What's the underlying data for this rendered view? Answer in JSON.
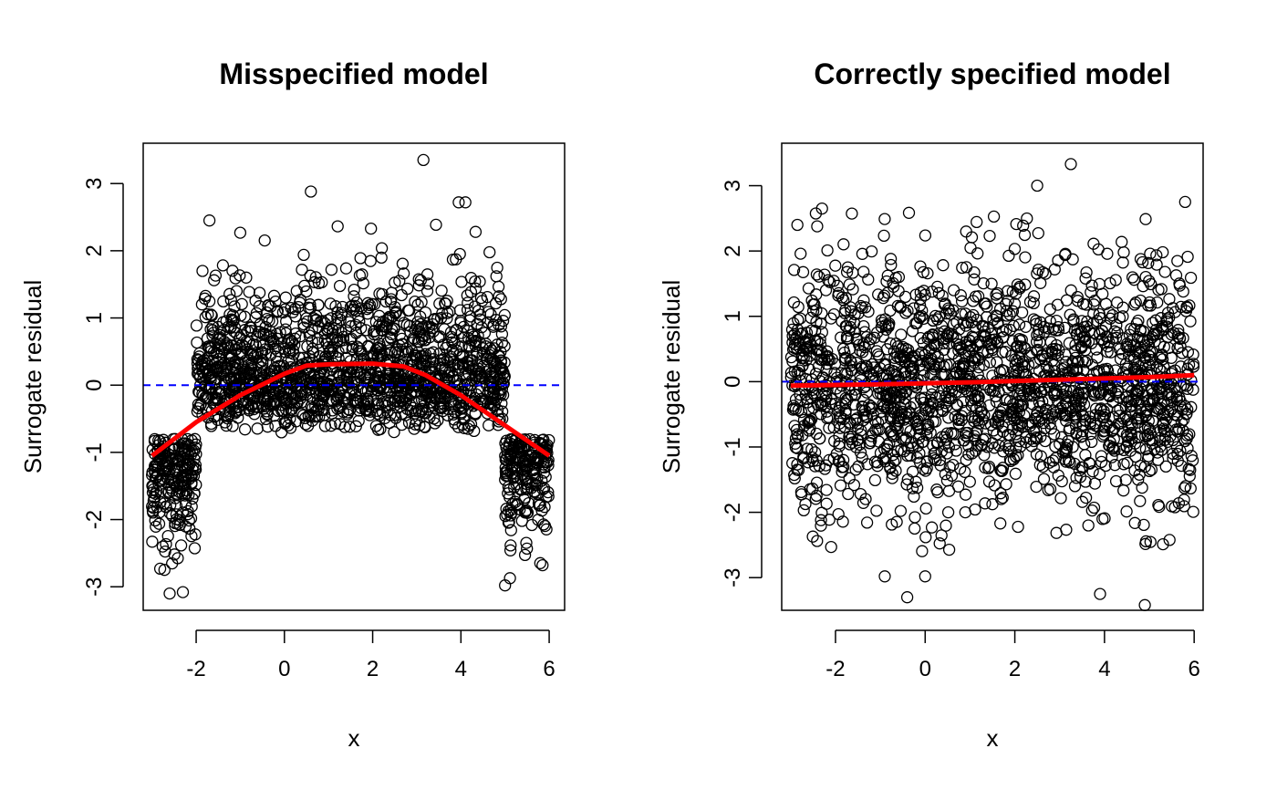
{
  "chart_data": [
    {
      "type": "scatter",
      "title": "Misspecified model",
      "xlabel": "x",
      "ylabel": "Surrogate residual",
      "xlim": [
        -3.2,
        6.35
      ],
      "ylim": [
        -3.35,
        3.6
      ],
      "xticks": [
        -2,
        0,
        2,
        4,
        6
      ],
      "yticks": [
        -3,
        -2,
        -1,
        0,
        1,
        2,
        3
      ],
      "grid": false,
      "point_style": "open-circle",
      "point_color": "#000000",
      "point_count_approx": 2000,
      "reference_line": {
        "y": 0,
        "style": "dashed",
        "color": "#0000ff"
      },
      "smooth_line": {
        "color": "#ff0000",
        "x": [
          -3.0,
          -2.0,
          -1.0,
          0.0,
          0.5,
          1.0,
          2.0,
          2.7,
          3.2,
          4.0,
          5.0,
          6.0
        ],
        "y": [
          -1.05,
          -0.55,
          -0.15,
          0.17,
          0.29,
          0.31,
          0.32,
          0.28,
          0.15,
          -0.15,
          -0.6,
          -1.05
        ]
      },
      "notable_points": [
        {
          "x": 3.15,
          "y": 3.35
        },
        {
          "x": 0.6,
          "y": 2.88
        },
        {
          "x": 3.95,
          "y": 2.72
        },
        {
          "x": 4.1,
          "y": 2.72
        },
        {
          "x": -2.6,
          "y": -3.1
        },
        {
          "x": -2.3,
          "y": -3.08
        },
        {
          "x": 5.0,
          "y": -2.98
        },
        {
          "x": 5.85,
          "y": -2.68
        },
        {
          "x": -1.7,
          "y": 2.45
        }
      ]
    },
    {
      "type": "scatter",
      "title": "Correctly specified model",
      "xlabel": "x",
      "ylabel": "Surrogate residual",
      "xlim": [
        -3.2,
        6.2
      ],
      "ylim": [
        -3.5,
        3.65
      ],
      "xticks": [
        -2,
        0,
        2,
        4,
        6
      ],
      "yticks": [
        -3,
        -2,
        -1,
        0,
        1,
        2,
        3
      ],
      "grid": false,
      "point_style": "open-circle",
      "point_color": "#000000",
      "point_count_approx": 2000,
      "reference_line": {
        "y": 0,
        "style": "dashed",
        "color": "#0000ff"
      },
      "smooth_line": {
        "color": "#ff0000",
        "x": [
          -3.0,
          -1.0,
          1.0,
          3.0,
          5.0,
          6.0
        ],
        "y": [
          -0.06,
          -0.04,
          -0.01,
          0.03,
          0.07,
          0.1
        ]
      },
      "notable_points": [
        {
          "x": 3.25,
          "y": 3.33
        },
        {
          "x": 2.5,
          "y": 3.0
        },
        {
          "x": -2.3,
          "y": 2.65
        },
        {
          "x": 5.8,
          "y": 2.75
        },
        {
          "x": 4.9,
          "y": -3.42
        },
        {
          "x": -0.4,
          "y": -3.3
        },
        {
          "x": 3.9,
          "y": -3.25
        },
        {
          "x": -0.9,
          "y": -2.98
        },
        {
          "x": 0.0,
          "y": -2.98
        },
        {
          "x": -2.85,
          "y": 2.4
        }
      ]
    }
  ]
}
